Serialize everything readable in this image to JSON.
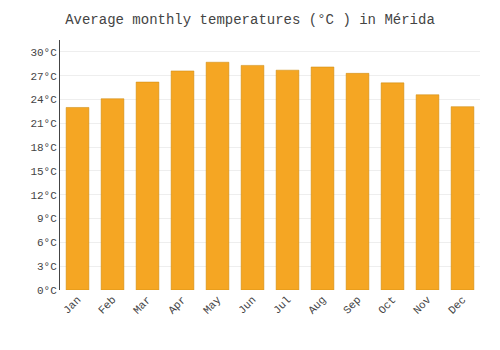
{
  "chart_data": {
    "type": "bar",
    "title": "Average monthly temperatures (°C ) in Mérida",
    "categories": [
      "Jan",
      "Feb",
      "Mar",
      "Apr",
      "May",
      "Jun",
      "Jul",
      "Aug",
      "Sep",
      "Oct",
      "Nov",
      "Dec"
    ],
    "values": [
      23.0,
      24.1,
      26.2,
      27.6,
      28.7,
      28.3,
      27.7,
      28.1,
      27.3,
      26.1,
      24.6,
      23.1
    ],
    "color": "#F5A623",
    "ylim": [
      0,
      31.5
    ],
    "yticks": [
      {
        "value": 0,
        "label": "0°C"
      },
      {
        "value": 3,
        "label": "3°C"
      },
      {
        "value": 6,
        "label": "6°C"
      },
      {
        "value": 9,
        "label": "9°C"
      },
      {
        "value": 12,
        "label": "12°C"
      },
      {
        "value": 15,
        "label": "15°C"
      },
      {
        "value": 18,
        "label": "18°C"
      },
      {
        "value": 21,
        "label": "21°C"
      },
      {
        "value": 24,
        "label": "24°C"
      },
      {
        "value": 27,
        "label": "27°C"
      },
      {
        "value": 30,
        "label": "30°C"
      }
    ],
    "grid": true
  }
}
